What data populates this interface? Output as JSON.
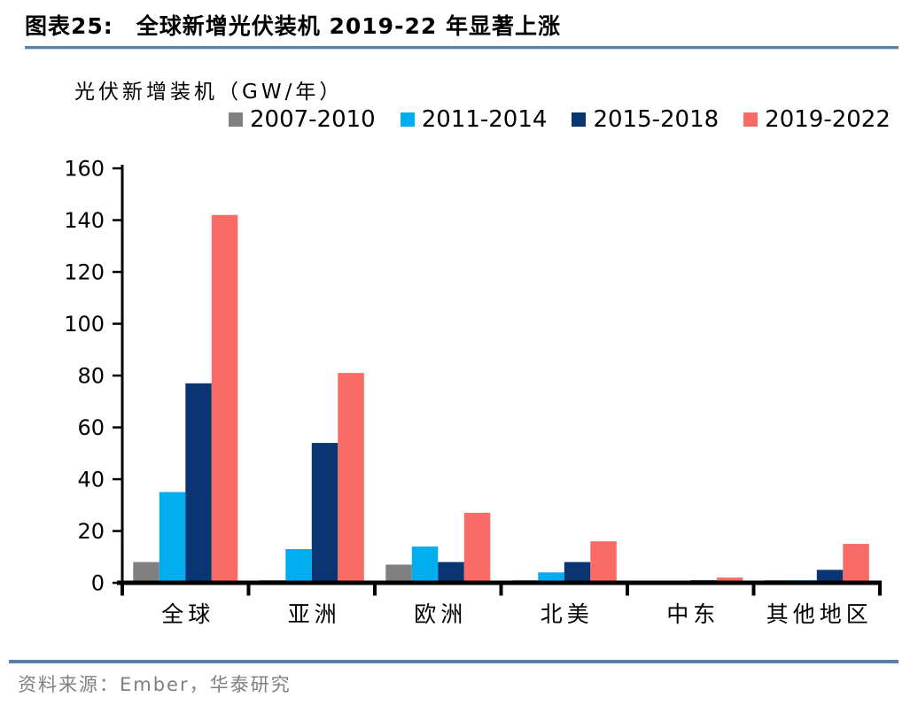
{
  "header": {
    "title_prefix": "图表25:",
    "title": "全球新增光伏装机 2019-22 年显著上涨"
  },
  "chart_data": {
    "type": "bar",
    "title": "光伏新增装机（GW/年）",
    "categories": [
      "全球",
      "亚洲",
      "欧洲",
      "北美",
      "中东",
      "其他地区"
    ],
    "series": [
      {
        "name": "2007-2010",
        "color": "#808080",
        "values": [
          8,
          1,
          7,
          1,
          0.3,
          1
        ]
      },
      {
        "name": "2011-2014",
        "color": "#00AEEF",
        "values": [
          35,
          13,
          14,
          4,
          0.3,
          1
        ]
      },
      {
        "name": "2015-2018",
        "color": "#0A3573",
        "values": [
          77,
          54,
          8,
          8,
          1,
          5
        ]
      },
      {
        "name": "2019-2022",
        "color": "#FB6B66",
        "values": [
          142,
          81,
          27,
          16,
          2,
          15
        ]
      }
    ],
    "xlabel": "",
    "ylabel": "",
    "ylim": [
      0,
      160
    ],
    "ytick_step": 20,
    "grid": false,
    "legend_position": "top"
  },
  "footer": {
    "source": "资料来源：Ember，华泰研究"
  },
  "colors": {
    "accent_rule": "#5B7FA8",
    "axis": "#000000",
    "source_text": "#808080"
  }
}
